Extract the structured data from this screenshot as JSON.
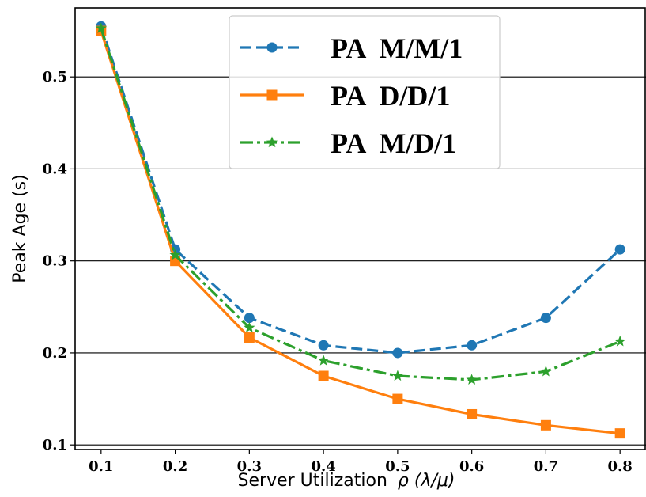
{
  "chart_data": {
    "type": "line",
    "xlabel": "Server Utilization",
    "xlabel_math": "ρ (λ/μ)",
    "ylabel": "Peak Age (s)",
    "x": [
      0.1,
      0.2,
      0.3,
      0.4,
      0.5,
      0.6,
      0.7,
      0.8
    ],
    "x_ticks": [
      "0.1",
      "0.2",
      "0.3",
      "0.4",
      "0.5",
      "0.6",
      "0.7",
      "0.8"
    ],
    "y_ticks": [
      "0.1",
      "0.2",
      "0.3",
      "0.4",
      "0.5"
    ],
    "xlim": [
      0.065,
      0.835
    ],
    "ylim": [
      0.095,
      0.575
    ],
    "grid": "horizontal",
    "legend_position": "top-center",
    "series": [
      {
        "name": "PA  M/M/1",
        "color": "#1f77b4",
        "line_style": "dashed",
        "marker": "circle",
        "values": [
          0.555,
          0.3125,
          0.2381,
          0.2083,
          0.2,
          0.2083,
          0.2381,
          0.3125
        ]
      },
      {
        "name": "PA  D/D/1",
        "color": "#ff7f0e",
        "line_style": "solid",
        "marker": "square",
        "values": [
          0.55,
          0.3,
          0.2167,
          0.175,
          0.15,
          0.1333,
          0.1214,
          0.1125
        ]
      },
      {
        "name": "PA  M/D/1",
        "color": "#2ca02c",
        "line_style": "dashdot",
        "marker": "star",
        "values": [
          0.5528,
          0.3063,
          0.2274,
          0.1917,
          0.175,
          0.1708,
          0.1798,
          0.2125
        ]
      }
    ]
  }
}
